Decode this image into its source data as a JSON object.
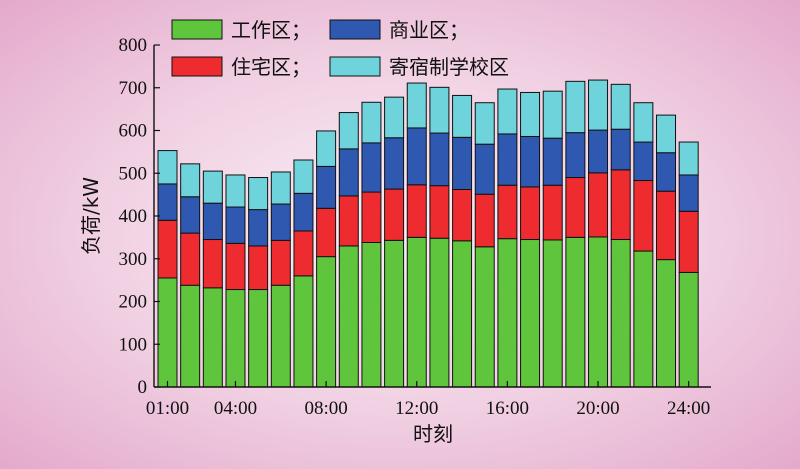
{
  "chart_data": {
    "type": "bar",
    "stacked": true,
    "xlabel": "时刻",
    "ylabel": "负荷/kW",
    "ylim": [
      0,
      800
    ],
    "yticks": [
      0,
      100,
      200,
      300,
      400,
      500,
      600,
      700,
      800
    ],
    "xtick_labels": [
      "01:00",
      "04:00",
      "08:00",
      "12:00",
      "16:00",
      "20:00",
      "24:00"
    ],
    "xtick_hours": [
      1,
      4,
      8,
      12,
      16,
      20,
      24
    ],
    "grid": false,
    "legend_position": "top-left",
    "hours": [
      1,
      2,
      3,
      4,
      5,
      6,
      7,
      8,
      9,
      10,
      11,
      12,
      13,
      14,
      15,
      16,
      17,
      18,
      19,
      20,
      21,
      22,
      23,
      24
    ],
    "series": [
      {
        "name": "工作区；",
        "color": "#5ec53c",
        "values": [
          255,
          238,
          232,
          228,
          228,
          238,
          260,
          305,
          330,
          338,
          343,
          350,
          348,
          342,
          328,
          347,
          345,
          344,
          350,
          351,
          345,
          318,
          298,
          268
        ]
      },
      {
        "name": "住宅区；",
        "color": "#ee2b2e",
        "values": [
          135,
          122,
          113,
          108,
          102,
          105,
          105,
          113,
          117,
          118,
          120,
          123,
          123,
          120,
          123,
          125,
          123,
          128,
          140,
          150,
          163,
          165,
          160,
          143
        ]
      },
      {
        "name": "商业区；",
        "color": "#2f58b0",
        "values": [
          85,
          85,
          85,
          85,
          85,
          85,
          88,
          98,
          110,
          115,
          120,
          133,
          123,
          122,
          117,
          120,
          118,
          110,
          105,
          100,
          95,
          90,
          90,
          85
        ]
      },
      {
        "name": "寄宿制学校区",
        "color": "#6ed3da",
        "values": [
          78,
          77,
          75,
          75,
          75,
          75,
          78,
          83,
          85,
          95,
          95,
          105,
          107,
          98,
          97,
          105,
          103,
          110,
          120,
          117,
          105,
          92,
          88,
          77
        ]
      }
    ]
  }
}
